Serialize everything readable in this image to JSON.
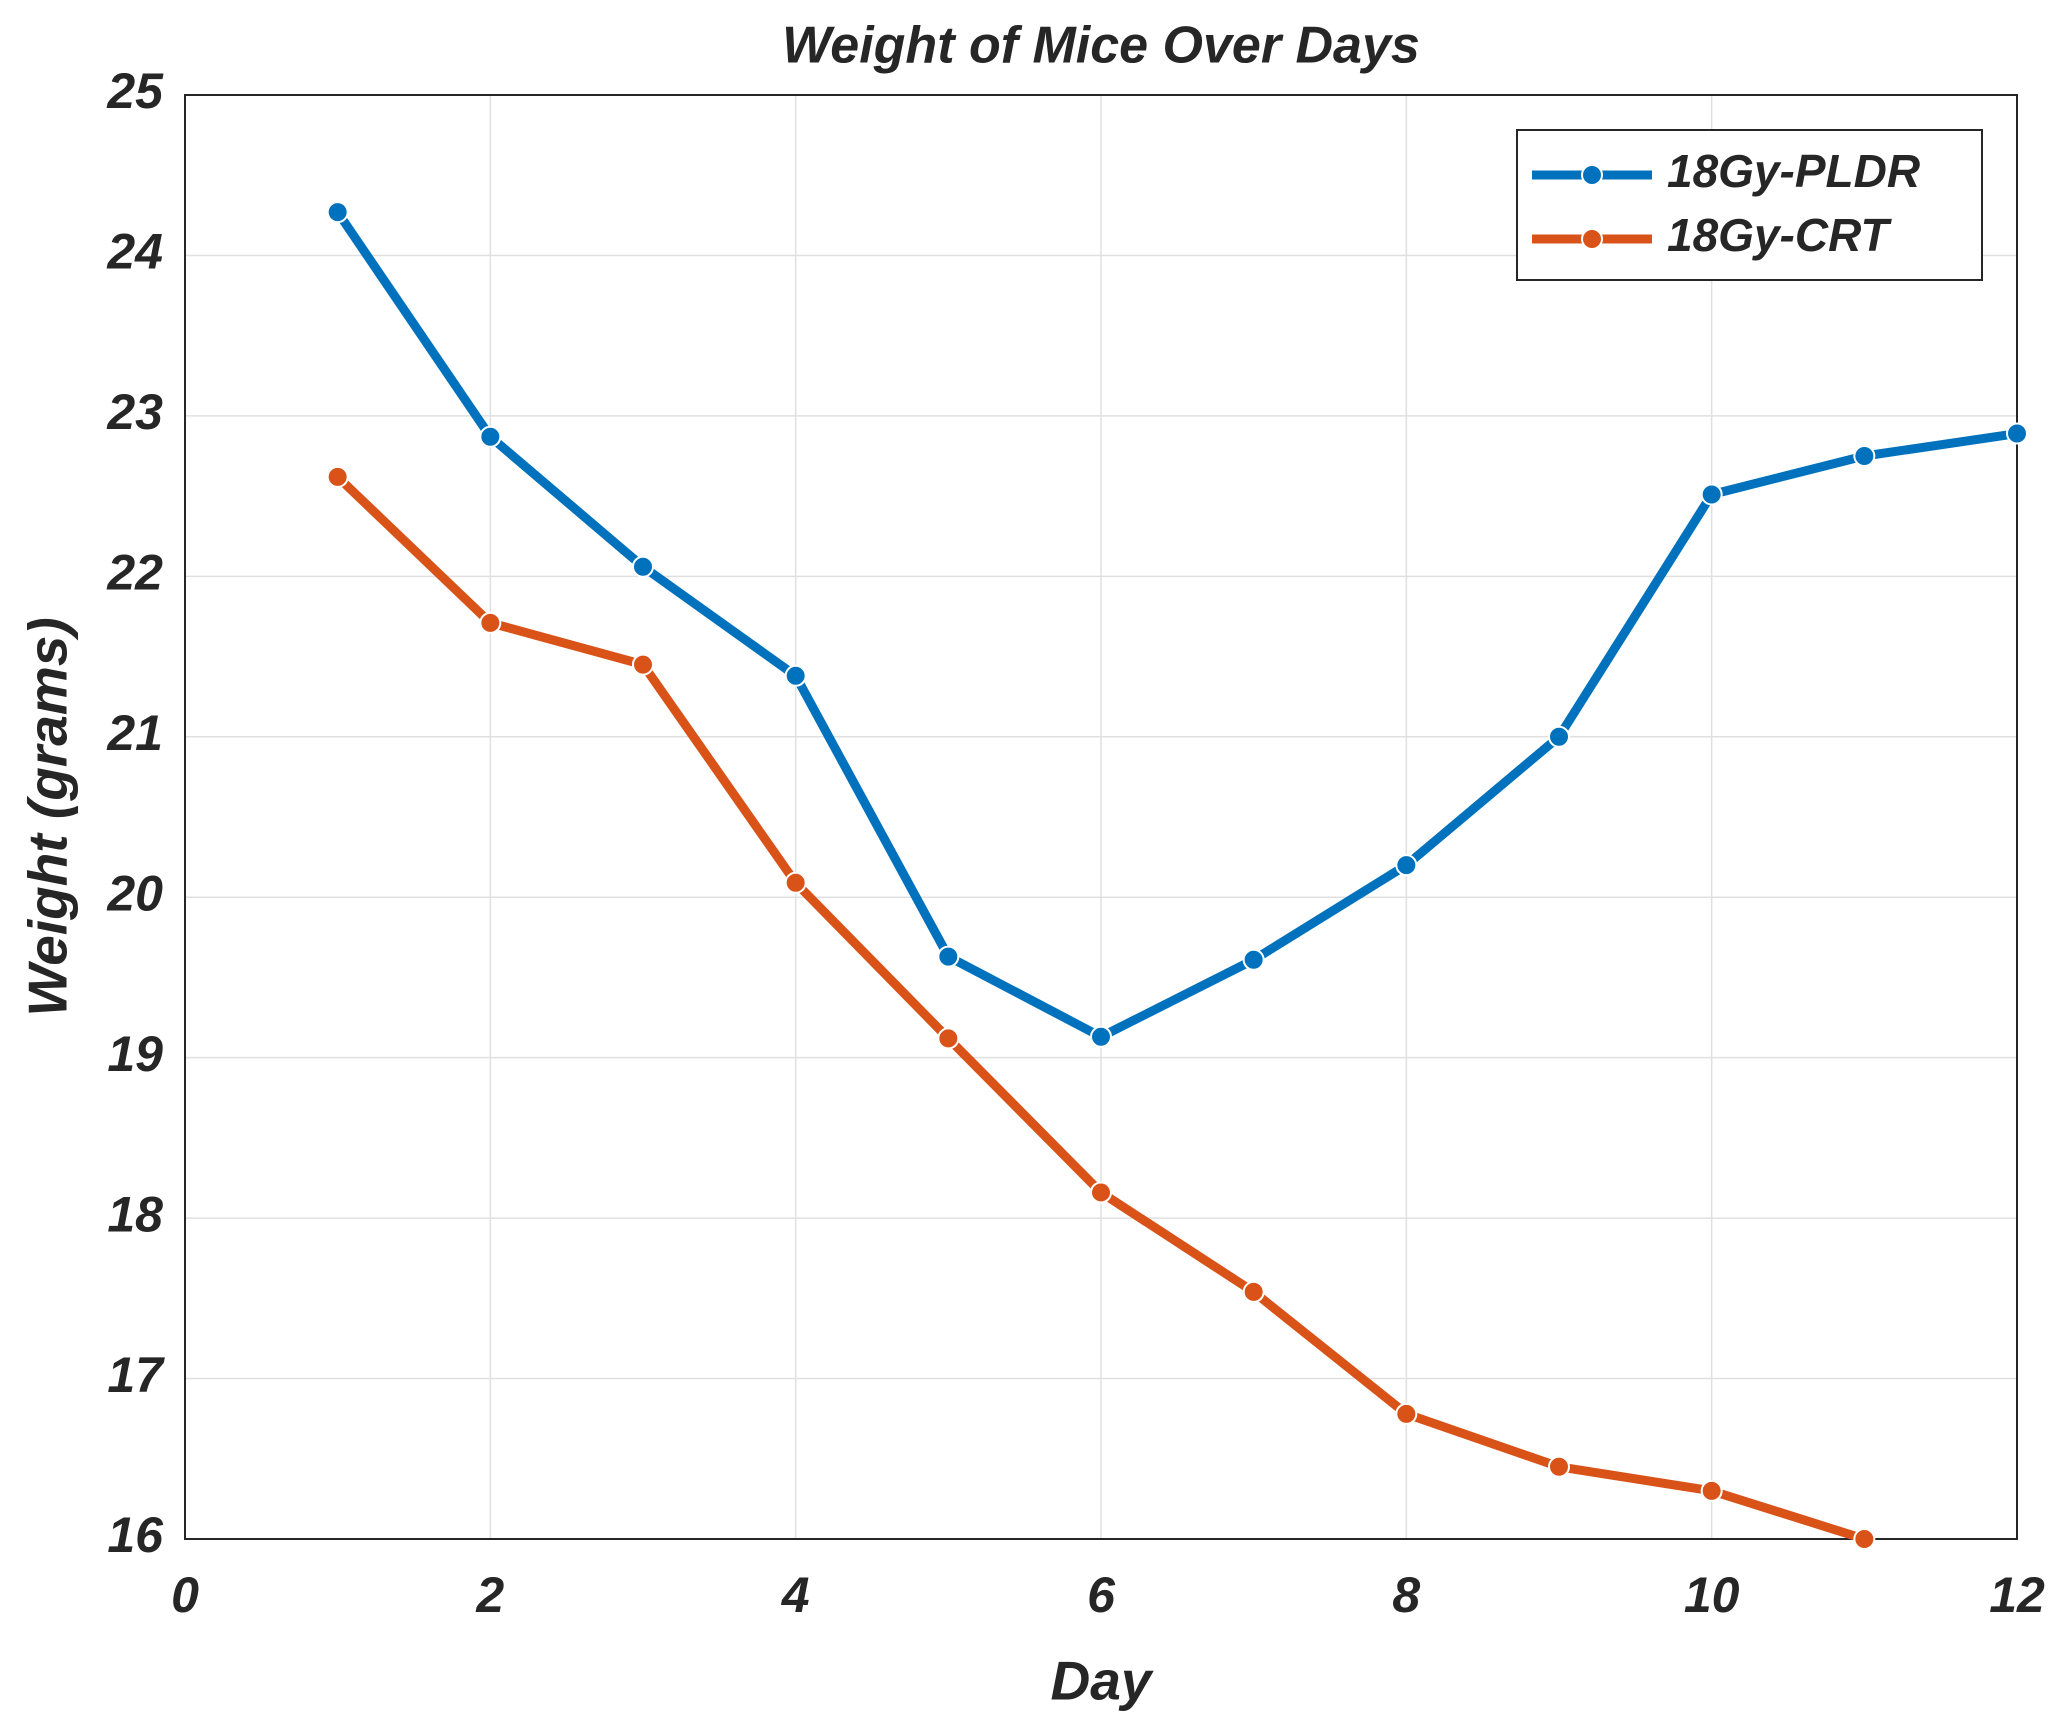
{
  "chart_data": {
    "type": "line",
    "title": "Weight of Mice Over Days",
    "x_label": "Day",
    "y_label": "Weight (grams)",
    "series": [
      {
        "name": "18Gy-PLDR",
        "color": "#0072bd",
        "x": [
          1,
          2,
          3,
          4,
          5,
          6,
          7,
          8,
          9,
          10,
          11,
          12
        ],
        "values": [
          24.27,
          22.87,
          22.06,
          21.38,
          19.63,
          19.13,
          19.61,
          20.2,
          21.0,
          22.51,
          22.75,
          22.89
        ]
      },
      {
        "name": "18Gy-CRT",
        "color": "#d95319",
        "x": [
          1,
          2,
          3,
          4,
          5,
          6,
          7,
          8,
          9,
          10,
          11
        ],
        "values": [
          22.62,
          21.71,
          21.45,
          20.09,
          19.12,
          18.16,
          17.54,
          16.78,
          16.45,
          16.3,
          16.0
        ]
      }
    ],
    "xlim": [
      0,
      12
    ],
    "xticks": [
      0,
      2,
      4,
      6,
      8,
      10,
      12
    ],
    "ylim": [
      16,
      25
    ],
    "yticks": [
      16,
      17,
      18,
      19,
      20,
      21,
      22,
      23,
      24,
      25
    ],
    "grid": true,
    "legend_position": "upper-right"
  }
}
